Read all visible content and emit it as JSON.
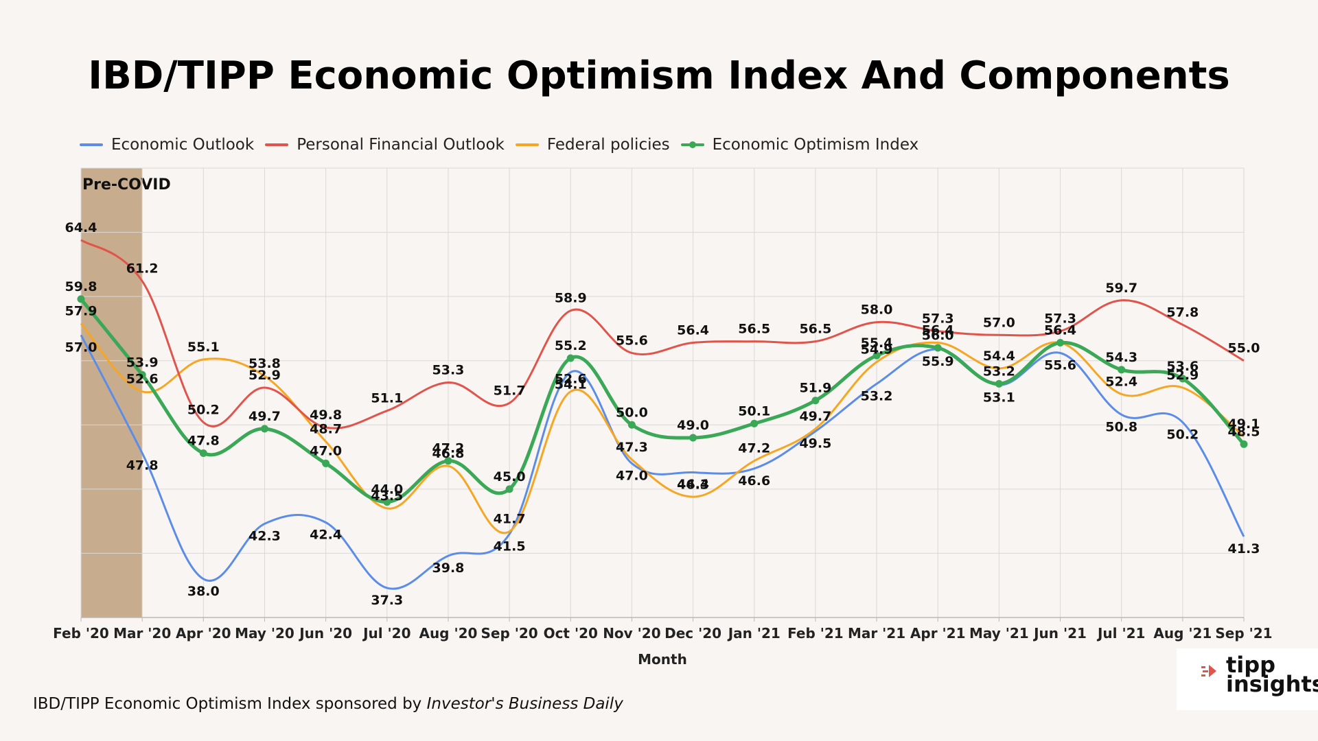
{
  "title": "IBD/TIPP Economic Optimism Index And Components",
  "footer": {
    "prefix": "IBD/TIPP Economic Optimism Index sponsored by ",
    "publication": "Investor's Business Daily"
  },
  "logo": {
    "line1": "tipp",
    "line2": "insights"
  },
  "colors": {
    "background": "#f8f5f2",
    "economic_outlook": "#5b8de8",
    "personal_financial_outlook": "#e0544b",
    "federal_policies": "#f5a623",
    "economic_optimism_index": "#3aa856",
    "precovid_band": "#c8ac8e"
  },
  "chart_data": {
    "type": "line",
    "title": "IBD/TIPP Economic Optimism Index And Components",
    "xlabel": "Month",
    "ylabel": "",
    "ylim": [
      35,
      70
    ],
    "grid": "horizontal and vertical",
    "legend": "top-left",
    "highlight_band": {
      "label": "Pre-COVID",
      "from": "Feb '20",
      "to": "Mar '20"
    },
    "categories": [
      "Feb '20",
      "Mar '20",
      "Apr '20",
      "May '20",
      "Jun '20",
      "Jul '20",
      "Aug '20",
      "Sep '20",
      "Oct '20",
      "Nov '20",
      "Dec '20",
      "Jan '21",
      "Feb '21",
      "Mar '21",
      "Apr '21",
      "May '21",
      "Jun '21",
      "Jul '21",
      "Aug '21",
      "Sep '21"
    ],
    "series": [
      {
        "name": "Economic Outlook",
        "key": "economic_outlook",
        "values": [
          57.0,
          47.8,
          38.0,
          42.3,
          42.4,
          37.3,
          39.8,
          41.5,
          54.1,
          47.0,
          46.3,
          46.6,
          49.5,
          53.2,
          55.9,
          53.1,
          55.6,
          50.8,
          50.2,
          41.3
        ]
      },
      {
        "name": "Personal Financial Outlook",
        "key": "personal_financial_outlook",
        "values": [
          64.4,
          61.2,
          50.2,
          52.9,
          49.8,
          51.1,
          53.3,
          51.7,
          58.9,
          55.6,
          56.4,
          56.5,
          56.5,
          58.0,
          57.3,
          57.0,
          57.3,
          59.7,
          57.8,
          55.0
        ]
      },
      {
        "name": "Federal policies",
        "key": "federal_policies",
        "values": [
          57.9,
          52.6,
          55.1,
          53.8,
          48.7,
          43.5,
          46.8,
          41.7,
          52.6,
          47.3,
          44.4,
          47.2,
          49.7,
          54.9,
          56.4,
          54.4,
          56.4,
          52.4,
          52.9,
          49.1
        ]
      },
      {
        "name": "Economic Optimism Index",
        "key": "economic_optimism_index",
        "values": [
          59.8,
          53.9,
          47.8,
          49.7,
          47.0,
          44.0,
          47.2,
          45.0,
          55.2,
          50.0,
          49.0,
          50.1,
          51.9,
          55.4,
          56.0,
          53.2,
          56.4,
          54.3,
          53.6,
          48.5
        ]
      }
    ]
  }
}
